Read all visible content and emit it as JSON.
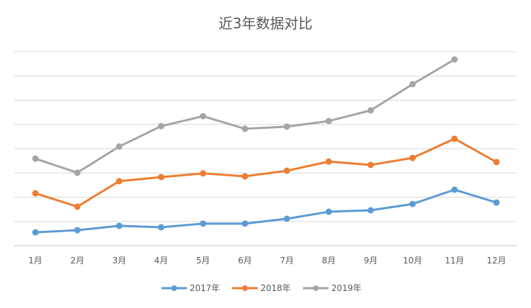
{
  "chart_data": {
    "type": "line",
    "title": "近3年数据对比",
    "xlabel": "",
    "ylabel": "",
    "categories": [
      "1月",
      "2月",
      "3月",
      "4月",
      "5月",
      "6月",
      "7月",
      "8月",
      "9月",
      "10月",
      "11月",
      "12月"
    ],
    "ylim": [
      0,
      8
    ],
    "y_tick_labels_shown": false,
    "grid": true,
    "legend_position": "bottom",
    "series": [
      {
        "name": "2017年",
        "color": "#5B9BD5",
        "values": [
          0.55,
          0.64,
          0.82,
          0.76,
          0.91,
          0.91,
          1.11,
          1.4,
          1.46,
          1.72,
          2.31,
          1.78
        ]
      },
      {
        "name": "2018年",
        "color": "#ED7D31",
        "values": [
          2.16,
          1.61,
          2.66,
          2.83,
          2.98,
          2.86,
          3.09,
          3.47,
          3.33,
          3.62,
          4.41,
          3.45
        ]
      },
      {
        "name": "2019年",
        "color": "#A5A5A5",
        "values": [
          3.59,
          3.01,
          4.09,
          4.93,
          5.34,
          4.82,
          4.91,
          5.14,
          5.58,
          6.66,
          7.68,
          null
        ]
      }
    ]
  }
}
